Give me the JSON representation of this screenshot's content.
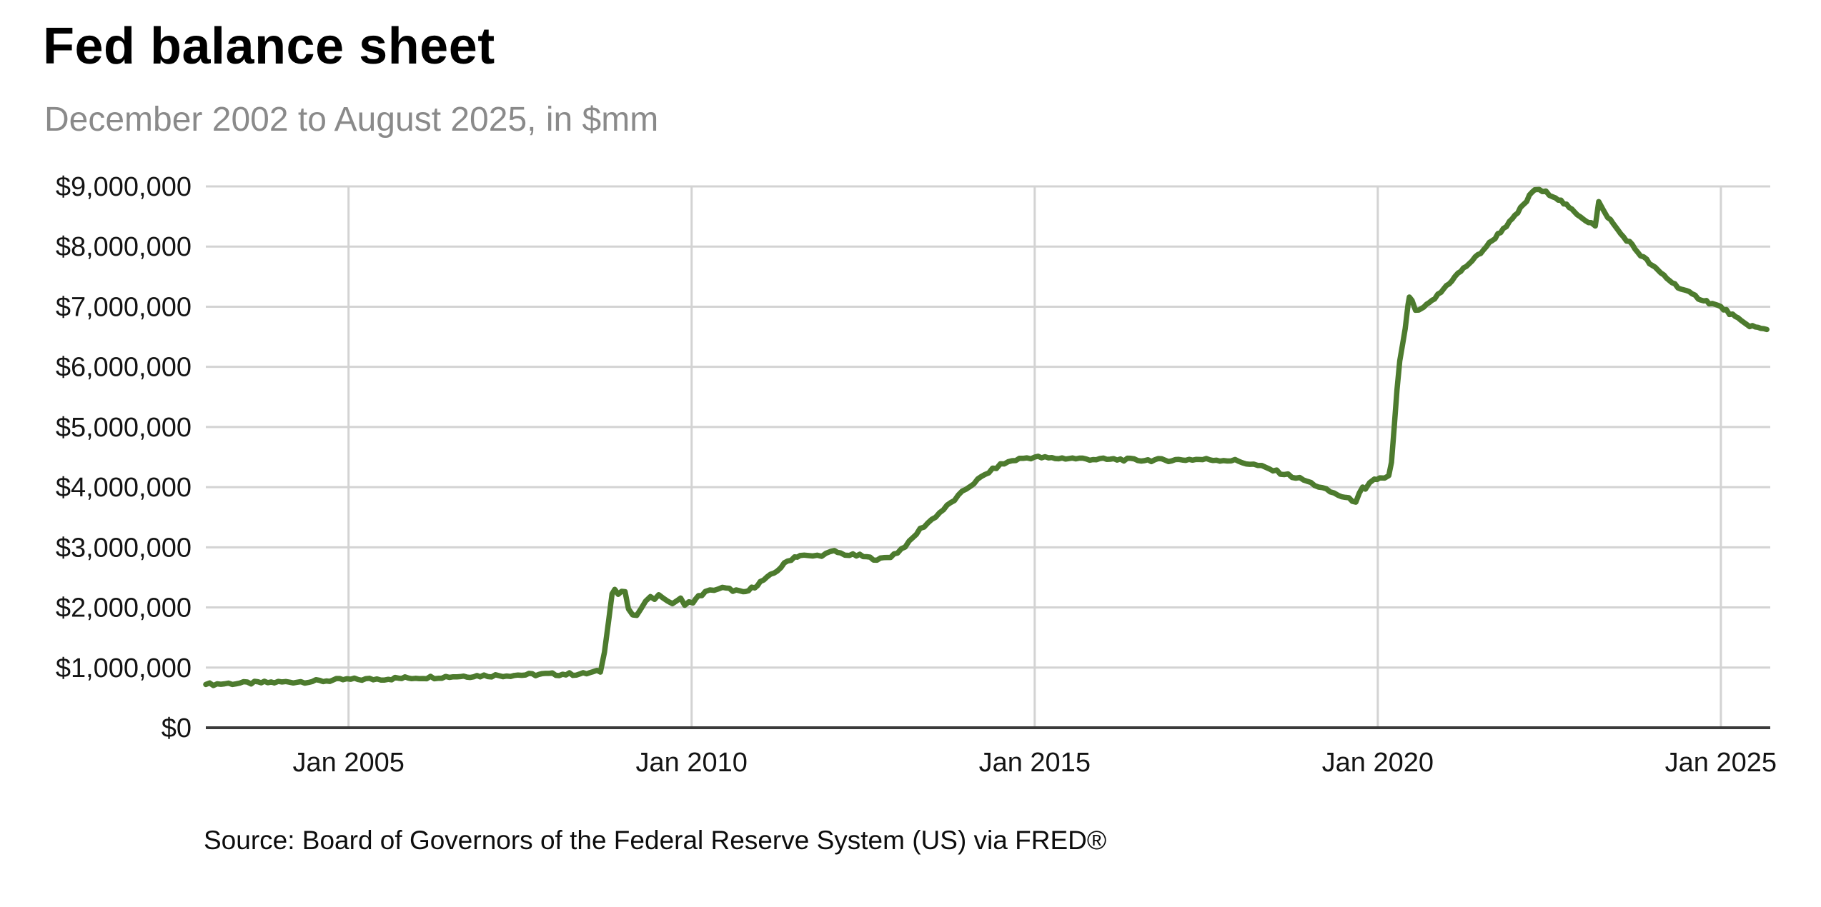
{
  "colors": {
    "line": "#4d7b2e",
    "grid": "#d3d3d3",
    "axis": "#3a3a3a",
    "title": "#000000",
    "subtitle": "#8a8a8a",
    "tick_label": "#141414"
  },
  "chart_data": {
    "type": "line",
    "title": "Fed balance sheet",
    "subtitle": "December 2002 to August 2025, in $mm",
    "source": "Source: Board of Governors of the Federal Reserve System (US) via FRED®",
    "unit": "$mm",
    "grid": true,
    "legend": "none",
    "x_domain": [
      2002.92,
      2025.72
    ],
    "y_domain": [
      0,
      9000000
    ],
    "y_ticks": [
      {
        "value": 0,
        "label": "$0"
      },
      {
        "value": 1000000,
        "label": "$1,000,000"
      },
      {
        "value": 2000000,
        "label": "$2,000,000"
      },
      {
        "value": 3000000,
        "label": "$3,000,000"
      },
      {
        "value": 4000000,
        "label": "$4,000,000"
      },
      {
        "value": 5000000,
        "label": "$5,000,000"
      },
      {
        "value": 6000000,
        "label": "$6,000,000"
      },
      {
        "value": 7000000,
        "label": "$7,000,000"
      },
      {
        "value": 8000000,
        "label": "$8,000,000"
      },
      {
        "value": 9000000,
        "label": "$9,000,000"
      }
    ],
    "x_ticks": [
      {
        "value": 2005,
        "label": "Jan 2005"
      },
      {
        "value": 2010,
        "label": "Jan 2010"
      },
      {
        "value": 2015,
        "label": "Jan 2015"
      },
      {
        "value": 2020,
        "label": "Jan 2020"
      },
      {
        "value": 2025,
        "label": "Jan 2025"
      }
    ],
    "series": [
      {
        "points": [
          [
            2002.92,
            720000
          ],
          [
            2003.25,
            735000
          ],
          [
            2003.58,
            745000
          ],
          [
            2003.92,
            755000
          ],
          [
            2004.25,
            765000
          ],
          [
            2004.58,
            775000
          ],
          [
            2004.92,
            800000
          ],
          [
            2005.25,
            805000
          ],
          [
            2005.58,
            815000
          ],
          [
            2005.92,
            830000
          ],
          [
            2006.25,
            840000
          ],
          [
            2006.58,
            855000
          ],
          [
            2006.92,
            865000
          ],
          [
            2007.25,
            870000
          ],
          [
            2007.58,
            880000
          ],
          [
            2007.92,
            890000
          ],
          [
            2008.17,
            890000
          ],
          [
            2008.42,
            895000
          ],
          [
            2008.67,
            940000
          ],
          [
            2008.73,
            1250000
          ],
          [
            2008.79,
            1800000
          ],
          [
            2008.84,
            2250000
          ],
          [
            2008.88,
            2300000
          ],
          [
            2008.93,
            2220000
          ],
          [
            2008.98,
            2270000
          ],
          [
            2009.03,
            2240000
          ],
          [
            2009.08,
            1980000
          ],
          [
            2009.14,
            1850000
          ],
          [
            2009.2,
            1880000
          ],
          [
            2009.27,
            1980000
          ],
          [
            2009.33,
            2080000
          ],
          [
            2009.4,
            2200000
          ],
          [
            2009.46,
            2160000
          ],
          [
            2009.52,
            2200000
          ],
          [
            2009.58,
            2170000
          ],
          [
            2009.65,
            2120000
          ],
          [
            2009.72,
            2040000
          ],
          [
            2009.78,
            2120000
          ],
          [
            2009.84,
            2160000
          ],
          [
            2009.9,
            2020000
          ],
          [
            2009.96,
            2080000
          ],
          [
            2010.02,
            2100000
          ],
          [
            2010.1,
            2180000
          ],
          [
            2010.2,
            2250000
          ],
          [
            2010.33,
            2300000
          ],
          [
            2010.45,
            2320000
          ],
          [
            2010.55,
            2300000
          ],
          [
            2010.65,
            2280000
          ],
          [
            2010.75,
            2240000
          ],
          [
            2010.83,
            2280000
          ],
          [
            2010.92,
            2350000
          ],
          [
            2011.0,
            2420000
          ],
          [
            2011.1,
            2490000
          ],
          [
            2011.2,
            2570000
          ],
          [
            2011.3,
            2670000
          ],
          [
            2011.4,
            2770000
          ],
          [
            2011.5,
            2840000
          ],
          [
            2011.58,
            2865000
          ],
          [
            2011.7,
            2850000
          ],
          [
            2011.83,
            2860000
          ],
          [
            2011.96,
            2890000
          ],
          [
            2012.08,
            2930000
          ],
          [
            2012.17,
            2900000
          ],
          [
            2012.3,
            2870000
          ],
          [
            2012.45,
            2860000
          ],
          [
            2012.6,
            2820000
          ],
          [
            2012.75,
            2800000
          ],
          [
            2012.9,
            2850000
          ],
          [
            2013.0,
            2920000
          ],
          [
            2013.17,
            3080000
          ],
          [
            2013.33,
            3300000
          ],
          [
            2013.5,
            3460000
          ],
          [
            2013.67,
            3630000
          ],
          [
            2013.83,
            3790000
          ],
          [
            2014.0,
            3970000
          ],
          [
            2014.17,
            4120000
          ],
          [
            2014.33,
            4250000
          ],
          [
            2014.5,
            4370000
          ],
          [
            2014.67,
            4440000
          ],
          [
            2014.83,
            4480000
          ],
          [
            2015.0,
            4500000
          ],
          [
            2015.25,
            4480000
          ],
          [
            2015.5,
            4480000
          ],
          [
            2015.75,
            4470000
          ],
          [
            2016.0,
            4460000
          ],
          [
            2016.25,
            4460000
          ],
          [
            2016.5,
            4450000
          ],
          [
            2016.75,
            4450000
          ],
          [
            2017.0,
            4450000
          ],
          [
            2017.25,
            4460000
          ],
          [
            2017.5,
            4460000
          ],
          [
            2017.75,
            4450000
          ],
          [
            2017.92,
            4440000
          ],
          [
            2018.08,
            4400000
          ],
          [
            2018.25,
            4360000
          ],
          [
            2018.42,
            4300000
          ],
          [
            2018.58,
            4240000
          ],
          [
            2018.75,
            4180000
          ],
          [
            2018.92,
            4120000
          ],
          [
            2019.08,
            4040000
          ],
          [
            2019.25,
            3950000
          ],
          [
            2019.42,
            3870000
          ],
          [
            2019.58,
            3800000
          ],
          [
            2019.68,
            3770000
          ],
          [
            2019.73,
            3880000
          ],
          [
            2019.78,
            3980000
          ],
          [
            2019.82,
            3950000
          ],
          [
            2019.88,
            4050000
          ],
          [
            2019.95,
            4120000
          ],
          [
            2020.03,
            4150000
          ],
          [
            2020.1,
            4160000
          ],
          [
            2020.16,
            4180000
          ],
          [
            2020.2,
            4400000
          ],
          [
            2020.24,
            5000000
          ],
          [
            2020.28,
            5600000
          ],
          [
            2020.32,
            6080000
          ],
          [
            2020.36,
            6370000
          ],
          [
            2020.4,
            6620000
          ],
          [
            2020.44,
            7010000
          ],
          [
            2020.46,
            7170000
          ],
          [
            2020.5,
            7080000
          ],
          [
            2020.55,
            6950000
          ],
          [
            2020.6,
            6920000
          ],
          [
            2020.67,
            6990000
          ],
          [
            2020.75,
            7050000
          ],
          [
            2020.83,
            7140000
          ],
          [
            2020.92,
            7240000
          ],
          [
            2021.0,
            7350000
          ],
          [
            2021.08,
            7440000
          ],
          [
            2021.17,
            7550000
          ],
          [
            2021.25,
            7630000
          ],
          [
            2021.33,
            7720000
          ],
          [
            2021.42,
            7810000
          ],
          [
            2021.5,
            7900000
          ],
          [
            2021.58,
            8000000
          ],
          [
            2021.67,
            8100000
          ],
          [
            2021.75,
            8200000
          ],
          [
            2021.83,
            8300000
          ],
          [
            2021.92,
            8400000
          ],
          [
            2022.0,
            8500000
          ],
          [
            2022.08,
            8630000
          ],
          [
            2022.17,
            8760000
          ],
          [
            2022.25,
            8910000
          ],
          [
            2022.29,
            8950000
          ],
          [
            2022.35,
            8930000
          ],
          [
            2022.45,
            8900000
          ],
          [
            2022.55,
            8850000
          ],
          [
            2022.63,
            8790000
          ],
          [
            2022.71,
            8720000
          ],
          [
            2022.79,
            8640000
          ],
          [
            2022.87,
            8570000
          ],
          [
            2022.95,
            8510000
          ],
          [
            2023.03,
            8440000
          ],
          [
            2023.11,
            8390000
          ],
          [
            2023.17,
            8340000
          ],
          [
            2023.22,
            8730000
          ],
          [
            2023.28,
            8610000
          ],
          [
            2023.35,
            8500000
          ],
          [
            2023.43,
            8380000
          ],
          [
            2023.5,
            8270000
          ],
          [
            2023.58,
            8160000
          ],
          [
            2023.67,
            8070000
          ],
          [
            2023.75,
            7960000
          ],
          [
            2023.83,
            7860000
          ],
          [
            2023.92,
            7770000
          ],
          [
            2024.0,
            7680000
          ],
          [
            2024.08,
            7600000
          ],
          [
            2024.17,
            7520000
          ],
          [
            2024.25,
            7440000
          ],
          [
            2024.33,
            7370000
          ],
          [
            2024.42,
            7300000
          ],
          [
            2024.5,
            7250000
          ],
          [
            2024.58,
            7200000
          ],
          [
            2024.67,
            7150000
          ],
          [
            2024.75,
            7110000
          ],
          [
            2024.83,
            7070000
          ],
          [
            2024.92,
            7030000
          ],
          [
            2025.0,
            6990000
          ],
          [
            2025.08,
            6930000
          ],
          [
            2025.17,
            6860000
          ],
          [
            2025.25,
            6790000
          ],
          [
            2025.33,
            6730000
          ],
          [
            2025.42,
            6690000
          ],
          [
            2025.5,
            6660000
          ],
          [
            2025.58,
            6630000
          ],
          [
            2025.67,
            6620000
          ]
        ]
      }
    ]
  }
}
